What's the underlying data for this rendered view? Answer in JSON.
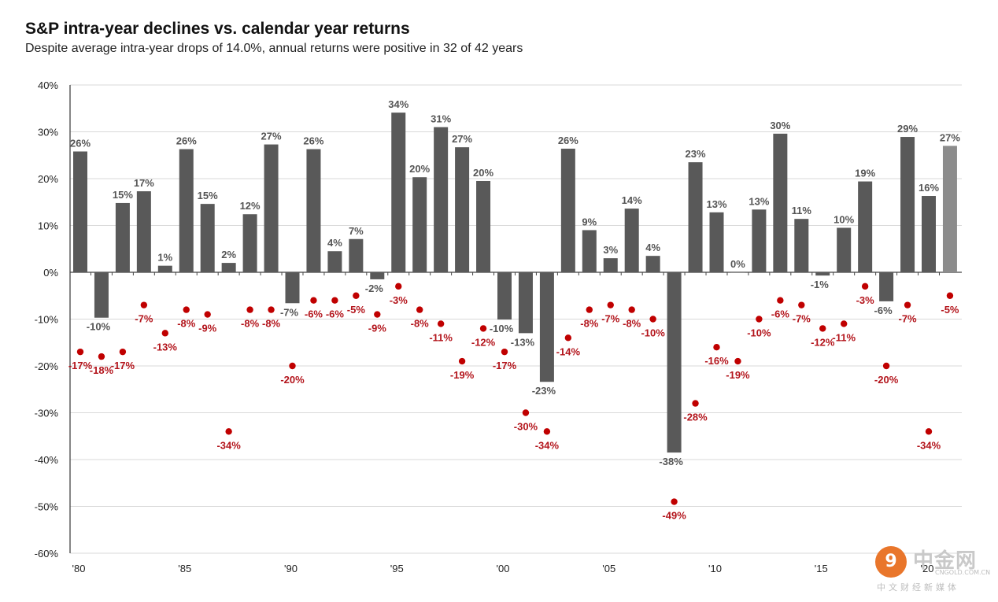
{
  "header": {
    "title": "S&P intra-year declines vs. calendar year returns",
    "subtitle": "Despite average intra-year drops of 14.0%, annual returns were positive in 32 of 42 years"
  },
  "watermark": {
    "logo_glyph": "9",
    "brand": "中金网",
    "url": "CNGOLD.COM.CN",
    "tagline": "中文财经新媒体"
  },
  "chart_data": {
    "type": "bar",
    "title": "S&P intra-year declines vs. calendar year returns",
    "subtitle": "Despite average intra-year drops of 14.0%, annual returns were positive in 32 of 42 years",
    "xlabel": "",
    "ylabel": "",
    "ylim": [
      -60,
      40
    ],
    "yticks": [
      40,
      30,
      20,
      10,
      0,
      -10,
      -20,
      -30,
      -40,
      -50,
      -60
    ],
    "ytick_labels": [
      "40%",
      "30%",
      "20%",
      "10%",
      "0%",
      "-10%",
      "-20%",
      "-30%",
      "-40%",
      "-50%",
      "-60%"
    ],
    "xtick_labels": [
      "'80",
      "'85",
      "'90",
      "'95",
      "'00",
      "'05",
      "'10",
      "'15",
      "'20"
    ],
    "xtick_years": [
      1980,
      1985,
      1990,
      1995,
      2000,
      2005,
      2010,
      2015,
      2020
    ],
    "grid": true,
    "colors": {
      "bar": "#595959",
      "bar_latest": "#8c8c8c",
      "dot": "#c00000",
      "dot_label": "#b3141b",
      "bar_label": "#555555",
      "grid": "#d9d9d9"
    },
    "years": [
      1980,
      1981,
      1982,
      1983,
      1984,
      1985,
      1986,
      1987,
      1988,
      1989,
      1990,
      1991,
      1992,
      1993,
      1994,
      1995,
      1996,
      1997,
      1998,
      1999,
      2000,
      2001,
      2002,
      2003,
      2004,
      2005,
      2006,
      2007,
      2008,
      2009,
      2010,
      2011,
      2012,
      2013,
      2014,
      2015,
      2016,
      2017,
      2018,
      2019,
      2020,
      2021
    ],
    "series": [
      {
        "name": "Calendar year return",
        "kind": "bar",
        "values": [
          25.8,
          -9.7,
          14.8,
          17.3,
          1.4,
          26.3,
          14.6,
          2.0,
          12.4,
          27.3,
          -6.6,
          26.3,
          4.5,
          7.1,
          -1.5,
          34.1,
          20.3,
          31.0,
          26.7,
          19.5,
          -10.1,
          -13.0,
          -23.4,
          26.4,
          9.0,
          3.0,
          13.6,
          3.5,
          -38.5,
          23.5,
          12.8,
          0.0,
          13.4,
          29.6,
          11.4,
          -0.7,
          9.5,
          19.4,
          -6.2,
          28.9,
          16.3,
          27.0
        ],
        "labels": [
          "26%",
          "-10%",
          "15%",
          "17%",
          "1%",
          "26%",
          "15%",
          "2%",
          "12%",
          "27%",
          "-7%",
          "26%",
          "4%",
          "7%",
          "-2%",
          "34%",
          "20%",
          "31%",
          "27%",
          "20%",
          "-10%",
          "-13%",
          "-23%",
          "26%",
          "9%",
          "3%",
          "14%",
          "4%",
          "-38%",
          "23%",
          "13%",
          "0%",
          "13%",
          "30%",
          "11%",
          "-1%",
          "10%",
          "19%",
          "-6%",
          "29%",
          "16%",
          "27%"
        ]
      },
      {
        "name": "Intra-year decline",
        "kind": "scatter",
        "values": [
          -17,
          -18,
          -17,
          -7,
          -13,
          -8,
          -9,
          -34,
          -8,
          -8,
          -20,
          -6,
          -6,
          -5,
          -9,
          -3,
          -8,
          -11,
          -19,
          -12,
          -17,
          -30,
          -34,
          -14,
          -8,
          -7,
          -8,
          -10,
          -49,
          -28,
          -16,
          -19,
          -10,
          -6,
          -7,
          -12,
          -11,
          -3,
          -20,
          -7,
          -34,
          -5
        ],
        "labels": [
          "-17%",
          "-18%",
          "-17%",
          "-7%",
          "-13%",
          "-8%",
          "-9%",
          "-34%",
          "-8%",
          "-8%",
          "-20%",
          "-6%",
          "-6%",
          "-5%",
          "-9%",
          "-3%",
          "-8%",
          "-11%",
          "-19%",
          "-12%",
          "-17%",
          "-30%",
          "-34%",
          "-14%",
          "-8%",
          "-7%",
          "-8%",
          "-10%",
          "-49%",
          "-28%",
          "-16%",
          "-19%",
          "-10%",
          "-6%",
          "-7%",
          "-12%",
          "-11%",
          "-3%",
          "-20%",
          "-7%",
          "-34%",
          "-5%"
        ]
      }
    ]
  }
}
